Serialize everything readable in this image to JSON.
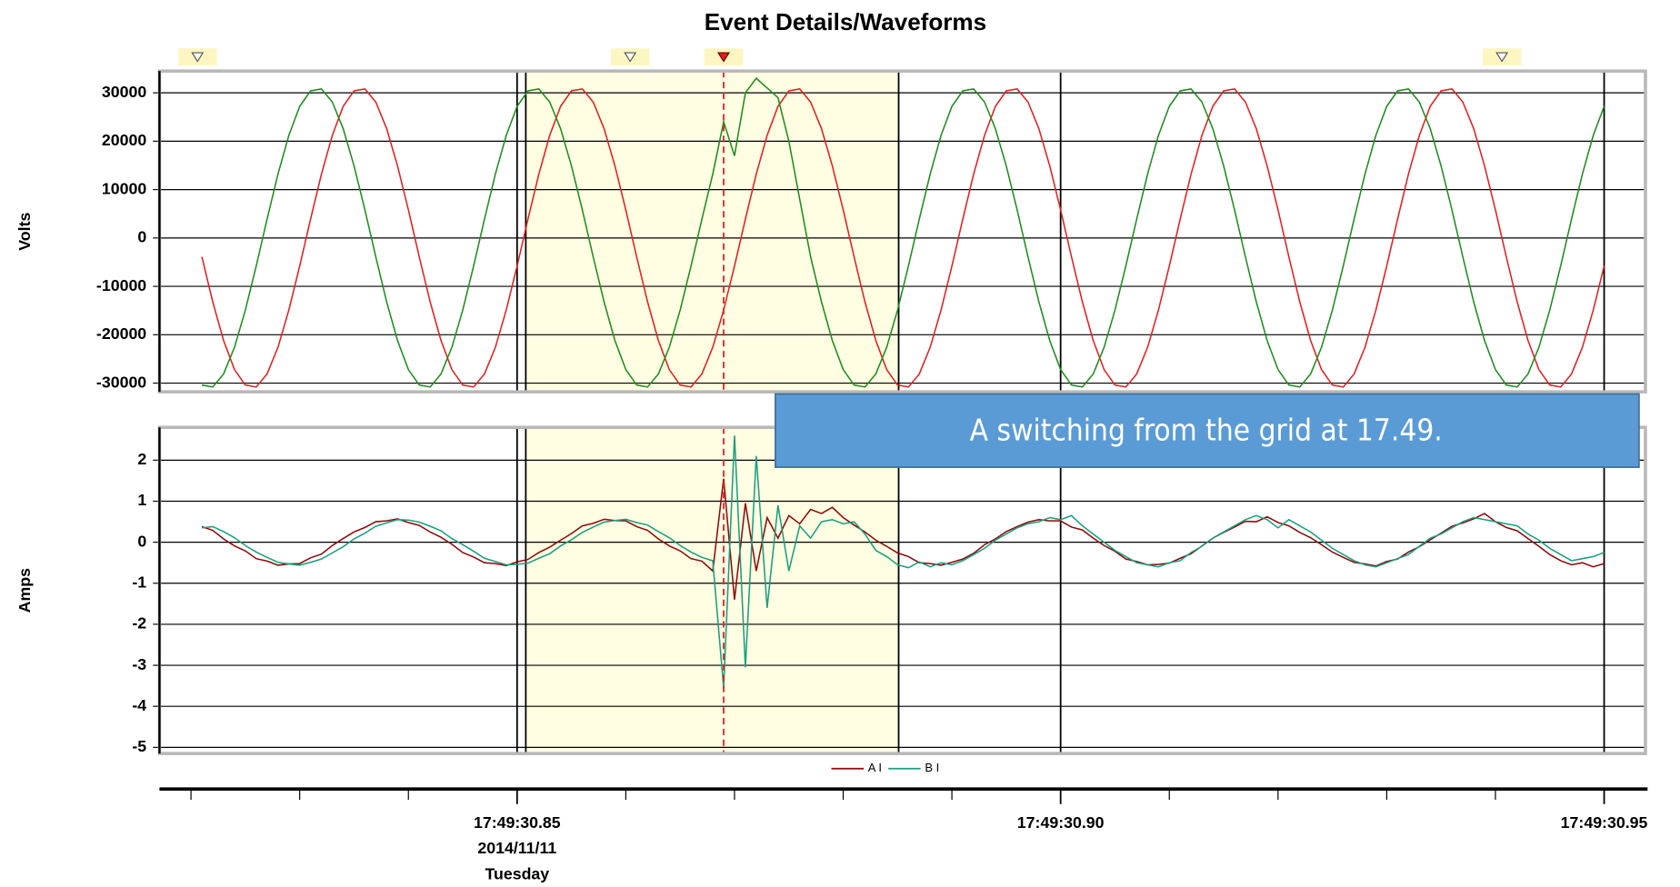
{
  "chart_data": [
    {
      "type": "line",
      "title": "Event Details/Waveforms",
      "ylabel": "Volts",
      "annotation": "A switching from the grid at 17.49.",
      "xlim": [
        30.8171,
        30.9538
      ],
      "xticks": [
        30.85,
        30.9,
        30.95
      ],
      "ylim": [
        -31800,
        34500
      ],
      "yticks": [
        -30000,
        -20000,
        -10000,
        0,
        10000,
        20000,
        30000
      ],
      "grid": true,
      "highlight": [
        30.8508,
        30.8851
      ],
      "cursor": 30.869,
      "markers": [
        30.8206,
        30.8604,
        30.869,
        30.9406
      ],
      "x": [
        30.821,
        30.822,
        30.823,
        30.824,
        30.825,
        30.826,
        30.827,
        30.828,
        30.829,
        30.83,
        30.831,
        30.832,
        30.833,
        30.834,
        30.835,
        30.836,
        30.837,
        30.838,
        30.839,
        30.84,
        30.841,
        30.842,
        30.843,
        30.844,
        30.845,
        30.846,
        30.847,
        30.848,
        30.849,
        30.85,
        30.851,
        30.852,
        30.853,
        30.854,
        30.855,
        30.856,
        30.857,
        30.858,
        30.859,
        30.86,
        30.861,
        30.862,
        30.863,
        30.864,
        30.865,
        30.866,
        30.867,
        30.868,
        30.869,
        30.87,
        30.871,
        30.872,
        30.873,
        30.874,
        30.875,
        30.876,
        30.877,
        30.878,
        30.879,
        30.88,
        30.881,
        30.882,
        30.883,
        30.884,
        30.885,
        30.886,
        30.887,
        30.888,
        30.889,
        30.89,
        30.891,
        30.892,
        30.893,
        30.894,
        30.895,
        30.896,
        30.897,
        30.898,
        30.899,
        30.9,
        30.901,
        30.902,
        30.903,
        30.904,
        30.905,
        30.906,
        30.907,
        30.908,
        30.909,
        30.91,
        30.911,
        30.912,
        30.913,
        30.914,
        30.915,
        30.916,
        30.917,
        30.918,
        30.919,
        30.92,
        30.921,
        30.922,
        30.923,
        30.924,
        30.925,
        30.926,
        30.927,
        30.928,
        30.929,
        30.93,
        30.931,
        30.932,
        30.933,
        30.934,
        30.935,
        30.936,
        30.937,
        30.938,
        30.939,
        30.94,
        30.941,
        30.942,
        30.943,
        30.944,
        30.945,
        30.946,
        30.947,
        30.948,
        30.949,
        30.95
      ],
      "series": [
        {
          "color": "#e02020",
          "values": [
            -3900,
            -13200,
            -21200,
            -27200,
            -30400,
            -30800,
            -28100,
            -22600,
            -14900,
            -5800,
            3900,
            13200,
            21200,
            27200,
            30400,
            30800,
            28100,
            22600,
            14900,
            5800,
            -3900,
            -13200,
            -21200,
            -27200,
            -30400,
            -30800,
            -28100,
            -22600,
            -14900,
            -5800,
            3900,
            13200,
            21200,
            27200,
            30400,
            30800,
            28100,
            22600,
            14900,
            5800,
            -3900,
            -13200,
            -21200,
            -27200,
            -30400,
            -30800,
            -28100,
            -22600,
            -14900,
            -5800,
            3900,
            13200,
            21200,
            27200,
            30400,
            30800,
            28100,
            22600,
            14900,
            5800,
            -3900,
            -13200,
            -21200,
            -27200,
            -30400,
            -30800,
            -28100,
            -22600,
            -14900,
            -5800,
            3900,
            13200,
            21200,
            27200,
            30400,
            30800,
            28100,
            22600,
            14900,
            5800,
            -3900,
            -13200,
            -21200,
            -27200,
            -30400,
            -30800,
            -28100,
            -22600,
            -14900,
            -5800,
            3900,
            13200,
            21200,
            27200,
            30400,
            30800,
            28100,
            22600,
            14900,
            5800,
            -3900,
            -13200,
            -21200,
            -27200,
            -30400,
            -30800,
            -28100,
            -22600,
            -14900,
            -5800,
            3900,
            13200,
            21200,
            27200,
            30400,
            30800,
            28100,
            22600,
            14900,
            5800,
            -3900,
            -13200,
            -21200,
            -27200,
            -30400,
            -30800,
            -28100,
            -22600,
            -14900,
            -5800
          ]
        },
        {
          "color": "#1e8c1e",
          "values": [
            -30400,
            -30800,
            -28100,
            -22600,
            -14900,
            -5800,
            3900,
            13200,
            21200,
            27200,
            30400,
            30800,
            28100,
            22600,
            14900,
            5800,
            -3900,
            -13200,
            -21200,
            -27200,
            -30400,
            -30800,
            -28100,
            -22600,
            -14900,
            -5800,
            3900,
            13200,
            21200,
            27200,
            30400,
            30800,
            28100,
            22600,
            14900,
            5800,
            -3900,
            -13200,
            -21200,
            -27200,
            -30400,
            -30800,
            -28100,
            -22600,
            -14900,
            -5800,
            3900,
            13200,
            24000,
            17000,
            30000,
            33000,
            31000,
            29000,
            20000,
            8000,
            -3900,
            -13200,
            -21200,
            -27200,
            -30400,
            -30800,
            -28100,
            -22600,
            -14900,
            -5800,
            3900,
            13200,
            21200,
            27200,
            30400,
            30800,
            28100,
            22600,
            14900,
            5800,
            -3900,
            -13200,
            -21200,
            -27200,
            -30400,
            -30800,
            -28100,
            -22600,
            -14900,
            -5800,
            3900,
            13200,
            21200,
            27200,
            30400,
            30800,
            28100,
            22600,
            14900,
            5800,
            -3900,
            -13200,
            -21200,
            -27200,
            -30400,
            -30800,
            -28100,
            -22600,
            -14900,
            -5800,
            3900,
            13200,
            21200,
            27200,
            30400,
            30800,
            28100,
            22600,
            14900,
            5800,
            -3900,
            -13200,
            -21200,
            -27200,
            -30400,
            -30800,
            -28100,
            -22600,
            -14900,
            -5800,
            3900,
            13200,
            21200,
            27200
          ]
        }
      ]
    },
    {
      "type": "line",
      "ylabel": "Amps",
      "xlim": [
        30.8171,
        30.9538
      ],
      "xticks": [
        {
          "value": 30.85,
          "label": "17:49:30.85"
        },
        {
          "value": 30.9,
          "label": "17:49:30.90"
        },
        {
          "value": 30.95,
          "label": "17:49:30.95"
        }
      ],
      "xminorticks": [
        30.82,
        30.83,
        30.84,
        30.86,
        30.87,
        30.88,
        30.89,
        30.91,
        30.92,
        30.93,
        30.94
      ],
      "date_label": "2014/11/11",
      "weekday_label": "Tuesday",
      "ylim": [
        -5.15,
        2.8
      ],
      "yticks": [
        -5,
        -4,
        -3,
        -2,
        -1,
        0,
        1,
        2
      ],
      "grid": true,
      "highlight": [
        30.8508,
        30.8851
      ],
      "cursor": 30.869,
      "x": [
        30.821,
        30.822,
        30.823,
        30.824,
        30.825,
        30.826,
        30.827,
        30.828,
        30.829,
        30.83,
        30.831,
        30.832,
        30.833,
        30.834,
        30.835,
        30.836,
        30.837,
        30.838,
        30.839,
        30.84,
        30.841,
        30.842,
        30.843,
        30.844,
        30.845,
        30.846,
        30.847,
        30.848,
        30.849,
        30.85,
        30.851,
        30.852,
        30.853,
        30.854,
        30.855,
        30.856,
        30.857,
        30.858,
        30.859,
        30.86,
        30.861,
        30.862,
        30.863,
        30.864,
        30.865,
        30.866,
        30.867,
        30.868,
        30.869,
        30.87,
        30.871,
        30.872,
        30.873,
        30.874,
        30.875,
        30.876,
        30.877,
        30.878,
        30.879,
        30.88,
        30.881,
        30.882,
        30.883,
        30.884,
        30.885,
        30.886,
        30.887,
        30.888,
        30.889,
        30.89,
        30.891,
        30.892,
        30.893,
        30.894,
        30.895,
        30.896,
        30.897,
        30.898,
        30.899,
        30.9,
        30.901,
        30.902,
        30.903,
        30.904,
        30.905,
        30.906,
        30.907,
        30.908,
        30.909,
        30.91,
        30.911,
        30.912,
        30.913,
        30.914,
        30.915,
        30.916,
        30.917,
        30.918,
        30.919,
        30.92,
        30.921,
        30.922,
        30.923,
        30.924,
        30.925,
        30.926,
        30.927,
        30.928,
        30.929,
        30.93,
        30.931,
        30.932,
        30.933,
        30.934,
        30.935,
        30.936,
        30.937,
        30.938,
        30.939,
        30.94,
        30.941,
        30.942,
        30.943,
        30.944,
        30.945,
        30.946,
        30.947,
        30.948,
        30.949,
        30.95
      ],
      "series": [
        {
          "name": "A I",
          "color": "#8b0a0a",
          "values": [
            0.38,
            0.29,
            0.08,
            -0.09,
            -0.21,
            -0.4,
            -0.46,
            -0.56,
            -0.53,
            -0.52,
            -0.38,
            -0.29,
            -0.08,
            0.09,
            0.25,
            0.36,
            0.5,
            0.52,
            0.57,
            0.48,
            0.41,
            0.25,
            0.12,
            -0.05,
            -0.25,
            -0.36,
            -0.5,
            -0.52,
            -0.57,
            -0.48,
            -0.42,
            -0.25,
            -0.12,
            0.05,
            0.21,
            0.4,
            0.46,
            0.56,
            0.53,
            0.52,
            0.38,
            0.29,
            0.08,
            -0.09,
            -0.21,
            -0.4,
            -0.46,
            -0.7,
            1.55,
            -1.4,
            0.95,
            -0.7,
            0.6,
            0.1,
            0.65,
            0.45,
            0.8,
            0.7,
            0.85,
            0.6,
            0.42,
            0.25,
            0.05,
            -0.1,
            -0.26,
            -0.35,
            -0.5,
            -0.52,
            -0.56,
            -0.49,
            -0.41,
            -0.27,
            -0.06,
            0.08,
            0.26,
            0.38,
            0.49,
            0.55,
            0.52,
            0.52,
            0.37,
            0.3,
            0.1,
            -0.08,
            -0.22,
            -0.41,
            -0.47,
            -0.55,
            -0.54,
            -0.51,
            -0.39,
            -0.28,
            -0.09,
            0.1,
            0.24,
            0.37,
            0.51,
            0.5,
            0.62,
            0.48,
            0.4,
            0.24,
            0.11,
            -0.06,
            -0.24,
            -0.37,
            -0.49,
            -0.53,
            -0.58,
            -0.47,
            -0.41,
            -0.24,
            -0.11,
            0.06,
            0.22,
            0.39,
            0.47,
            0.57,
            0.7,
            0.5,
            0.36,
            0.28,
            0.09,
            -0.1,
            -0.3,
            -0.45,
            -0.55,
            -0.5,
            -0.6,
            -0.52
          ]
        },
        {
          "name": "B I",
          "color": "#1a9e80",
          "values": [
            0.35,
            0.38,
            0.26,
            0.11,
            -0.08,
            -0.24,
            -0.37,
            -0.49,
            -0.53,
            -0.56,
            -0.49,
            -0.41,
            -0.26,
            -0.11,
            0.08,
            0.22,
            0.39,
            0.47,
            0.55,
            0.54,
            0.49,
            0.39,
            0.28,
            0.09,
            -0.06,
            -0.22,
            -0.39,
            -0.47,
            -0.55,
            -0.54,
            -0.51,
            -0.39,
            -0.28,
            -0.09,
            0.06,
            0.24,
            0.37,
            0.49,
            0.53,
            0.56,
            0.48,
            0.42,
            0.26,
            0.11,
            -0.08,
            -0.24,
            -0.37,
            -0.45,
            -3.55,
            2.6,
            -3.05,
            2.1,
            -1.6,
            0.9,
            -0.7,
            0.4,
            0.1,
            0.5,
            0.55,
            0.45,
            0.5,
            0.2,
            -0.2,
            -0.35,
            -0.55,
            -0.62,
            -0.48,
            -0.6,
            -0.5,
            -0.55,
            -0.45,
            -0.3,
            -0.15,
            0.05,
            0.2,
            0.35,
            0.45,
            0.5,
            0.6,
            0.55,
            0.65,
            0.4,
            0.2,
            0.0,
            -0.2,
            -0.35,
            -0.5,
            -0.55,
            -0.6,
            -0.5,
            -0.45,
            -0.25,
            -0.1,
            0.1,
            0.25,
            0.4,
            0.55,
            0.65,
            0.55,
            0.35,
            0.55,
            0.4,
            0.25,
            0.05,
            -0.15,
            -0.3,
            -0.45,
            -0.55,
            -0.6,
            -0.5,
            -0.4,
            -0.3,
            -0.1,
            0.1,
            0.2,
            0.35,
            0.5,
            0.6,
            0.55,
            0.5,
            0.45,
            0.4,
            0.2,
            0.05,
            -0.15,
            -0.3,
            -0.45,
            -0.4,
            -0.35,
            -0.25
          ]
        }
      ]
    }
  ]
}
